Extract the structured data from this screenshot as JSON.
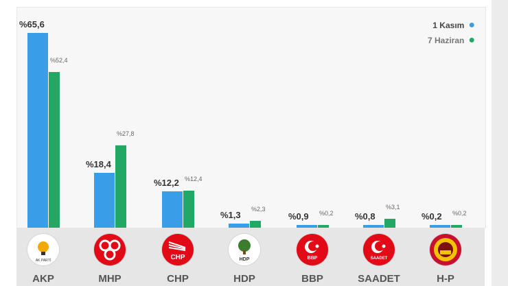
{
  "colors": {
    "series1": "#3a9de8",
    "series2": "#22a765",
    "label_primary": "#333333",
    "label_secondary": "#666666",
    "legend_text1": "#444444",
    "legend_text2": "#777777",
    "footer_bg": "#e6e6e6"
  },
  "legend": {
    "series1_label": "1 Kasım",
    "series2_label": "7 Haziran"
  },
  "chart_data": {
    "type": "bar",
    "categories": [
      "AKP",
      "MHP",
      "CHP",
      "HDP",
      "BBP",
      "SAADET",
      "H-P"
    ],
    "series": [
      {
        "name": "1 Kasım",
        "values": [
          65.6,
          18.4,
          12.2,
          1.3,
          0.9,
          0.8,
          0.2
        ],
        "labels": [
          "%65,6",
          "%18,4",
          "%12,2",
          "%1,3",
          "%0,9",
          "%0,8",
          "%0,2"
        ]
      },
      {
        "name": "7 Haziran",
        "values": [
          52.4,
          27.8,
          12.4,
          2.3,
          0.2,
          3.1,
          0.2
        ],
        "labels": [
          "%52,4",
          "%27,8",
          "%12,4",
          "%2,3",
          "%0,2",
          "%3,1",
          "%0,2"
        ]
      }
    ],
    "ylim": [
      0,
      66
    ],
    "grid": false,
    "legend_position": "top-right",
    "title": "",
    "xlabel": "",
    "ylabel": ""
  },
  "logos": [
    {
      "party": "AKP",
      "bg": "#ffffff",
      "fg": "#f2a900",
      "text": "AK PARTİ",
      "icon": "lightbulb-icon"
    },
    {
      "party": "MHP",
      "bg": "#e30a17",
      "fg": "#ffffff",
      "text": "",
      "icon": "three-crescents-icon"
    },
    {
      "party": "CHP",
      "bg": "#e30a17",
      "fg": "#ffffff",
      "text": "CHP",
      "icon": "six-arrows-icon"
    },
    {
      "party": "HDP",
      "bg": "#ffffff",
      "fg": "#3a7d2c",
      "text": "HDP",
      "icon": "tree-icon"
    },
    {
      "party": "BBP",
      "bg": "#e30a17",
      "fg": "#ffffff",
      "text": "BBP",
      "icon": "crescent-star-icon"
    },
    {
      "party": "SAADET",
      "bg": "#e30a17",
      "fg": "#ffffff",
      "text": "SAADET",
      "icon": "crescent-star-icon"
    },
    {
      "party": "H-P",
      "bg": "#c8102e",
      "fg": "#f2c200",
      "text": "",
      "icon": "sun-emblem-icon"
    }
  ]
}
